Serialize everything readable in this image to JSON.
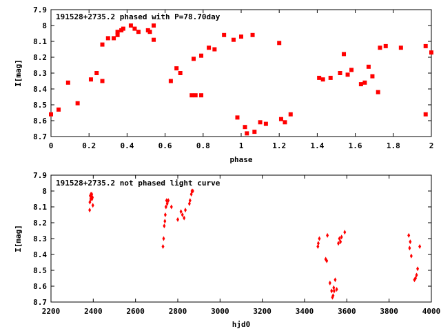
{
  "chart_data": [
    {
      "type": "scatter",
      "title": "191528+2735.2 phased with P=78.70day",
      "xlabel": "phase",
      "ylabel": "I[mag]",
      "xlim": [
        0,
        2
      ],
      "ylim": [
        8.7,
        7.9
      ],
      "y_inverted": true,
      "grid": false,
      "marker_color": "#ff0000",
      "x_ticks": [
        "0",
        "0.2",
        "0.4",
        "0.6",
        "0.8",
        "1",
        "1.2",
        "1.4",
        "1.6",
        "1.8",
        "2"
      ],
      "x_tick_values": [
        0,
        0.2,
        0.4,
        0.6,
        0.8,
        1.0,
        1.2,
        1.4,
        1.6,
        1.8,
        2.0
      ],
      "y_ticks": [
        "7.9",
        "8",
        "8.1",
        "8.2",
        "8.3",
        "8.4",
        "8.5",
        "8.6",
        "8.7"
      ],
      "y_tick_values": [
        7.9,
        8.0,
        8.1,
        8.2,
        8.3,
        8.4,
        8.5,
        8.6,
        8.7
      ],
      "points": [
        [
          0.0,
          8.56
        ],
        [
          0.04,
          8.53
        ],
        [
          0.09,
          8.36
        ],
        [
          0.14,
          8.49
        ],
        [
          0.21,
          8.34
        ],
        [
          0.24,
          8.3
        ],
        [
          0.27,
          8.35
        ],
        [
          0.27,
          8.12
        ],
        [
          0.3,
          8.08
        ],
        [
          0.33,
          8.08
        ],
        [
          0.35,
          8.06
        ],
        [
          0.35,
          8.04
        ],
        [
          0.37,
          8.03
        ],
        [
          0.38,
          8.02
        ],
        [
          0.42,
          8.0
        ],
        [
          0.44,
          8.02
        ],
        [
          0.46,
          8.04
        ],
        [
          0.51,
          8.03
        ],
        [
          0.52,
          8.04
        ],
        [
          0.54,
          8.09
        ],
        [
          0.54,
          8.0
        ],
        [
          0.63,
          8.35
        ],
        [
          0.66,
          8.27
        ],
        [
          0.68,
          8.3
        ],
        [
          0.74,
          8.44
        ],
        [
          0.75,
          8.21
        ],
        [
          0.76,
          8.44
        ],
        [
          0.79,
          8.19
        ],
        [
          0.79,
          8.44
        ],
        [
          0.83,
          8.14
        ],
        [
          0.86,
          8.15
        ],
        [
          0.91,
          8.06
        ],
        [
          0.96,
          8.09
        ],
        [
          0.98,
          8.58
        ],
        [
          1.0,
          8.07
        ],
        [
          1.02,
          8.64
        ],
        [
          1.03,
          8.68
        ],
        [
          1.06,
          8.06
        ],
        [
          1.07,
          8.67
        ],
        [
          1.1,
          8.61
        ],
        [
          1.13,
          8.62
        ],
        [
          1.2,
          8.11
        ],
        [
          1.21,
          8.59
        ],
        [
          1.23,
          8.61
        ],
        [
          1.26,
          8.56
        ],
        [
          1.41,
          8.33
        ],
        [
          1.43,
          8.34
        ],
        [
          1.47,
          8.33
        ],
        [
          1.52,
          8.3
        ],
        [
          1.54,
          8.18
        ],
        [
          1.56,
          8.31
        ],
        [
          1.58,
          8.28
        ],
        [
          1.63,
          8.37
        ],
        [
          1.65,
          8.36
        ],
        [
          1.67,
          8.26
        ],
        [
          1.69,
          8.32
        ],
        [
          1.72,
          8.42
        ],
        [
          1.73,
          8.14
        ],
        [
          1.76,
          8.13
        ],
        [
          1.84,
          8.14
        ],
        [
          1.97,
          8.13
        ],
        [
          1.97,
          8.56
        ],
        [
          2.0,
          8.17
        ]
      ]
    },
    {
      "type": "scatter",
      "title": "191528+2735.2 not phased light curve",
      "xlabel": "hjd0",
      "ylabel": "I[mag]",
      "xlim": [
        2200,
        4000
      ],
      "ylim": [
        8.7,
        7.9
      ],
      "y_inverted": true,
      "grid": false,
      "marker_color": "#ff0000",
      "x_ticks": [
        "2200",
        "2400",
        "2600",
        "2800",
        "3000",
        "3200",
        "3400",
        "3600",
        "3800",
        "4000"
      ],
      "x_tick_values": [
        2200,
        2400,
        2600,
        2800,
        3000,
        3200,
        3400,
        3600,
        3800,
        4000
      ],
      "y_ticks": [
        "7.9",
        "8",
        "8.1",
        "8.2",
        "8.3",
        "8.4",
        "8.5",
        "8.6",
        "8.7"
      ],
      "y_tick_values": [
        7.9,
        8.0,
        8.1,
        8.2,
        8.3,
        8.4,
        8.5,
        8.6,
        8.7
      ],
      "points": [
        [
          2383,
          8.12
        ],
        [
          2384,
          8.07
        ],
        [
          2386,
          8.03
        ],
        [
          2388,
          8.05
        ],
        [
          2389,
          8.02
        ],
        [
          2390,
          8.04
        ],
        [
          2391,
          8.03
        ],
        [
          2392,
          8.04
        ],
        [
          2393,
          8.02
        ],
        [
          2394,
          8.05
        ],
        [
          2396,
          8.04
        ],
        [
          2398,
          8.09
        ],
        [
          2730,
          8.35
        ],
        [
          2733,
          8.3
        ],
        [
          2736,
          8.22
        ],
        [
          2739,
          8.19
        ],
        [
          2741,
          8.15
        ],
        [
          2744,
          8.1
        ],
        [
          2747,
          8.06
        ],
        [
          2750,
          8.08
        ],
        [
          2755,
          8.06
        ],
        [
          2770,
          8.1
        ],
        [
          2800,
          8.18
        ],
        [
          2815,
          8.13
        ],
        [
          2822,
          8.15
        ],
        [
          2830,
          8.17
        ],
        [
          2836,
          8.12
        ],
        [
          2855,
          8.08
        ],
        [
          2858,
          8.06
        ],
        [
          2864,
          8.02
        ],
        [
          2867,
          8.0
        ],
        [
          2871,
          8.0
        ],
        [
          3463,
          8.35
        ],
        [
          3465,
          8.33
        ],
        [
          3470,
          8.3
        ],
        [
          3500,
          8.43
        ],
        [
          3505,
          8.44
        ],
        [
          3508,
          8.28
        ],
        [
          3520,
          8.58
        ],
        [
          3528,
          8.63
        ],
        [
          3532,
          8.67
        ],
        [
          3535,
          8.66
        ],
        [
          3538,
          8.61
        ],
        [
          3540,
          8.63
        ],
        [
          3545,
          8.56
        ],
        [
          3552,
          8.62
        ],
        [
          3560,
          8.33
        ],
        [
          3565,
          8.3
        ],
        [
          3570,
          8.32
        ],
        [
          3575,
          8.29
        ],
        [
          3590,
          8.26
        ],
        [
          3893,
          8.28
        ],
        [
          3897,
          8.36
        ],
        [
          3900,
          8.32
        ],
        [
          3905,
          8.41
        ],
        [
          3920,
          8.56
        ],
        [
          3925,
          8.55
        ],
        [
          3930,
          8.53
        ],
        [
          3935,
          8.49
        ],
        [
          3945,
          8.35
        ]
      ]
    }
  ]
}
